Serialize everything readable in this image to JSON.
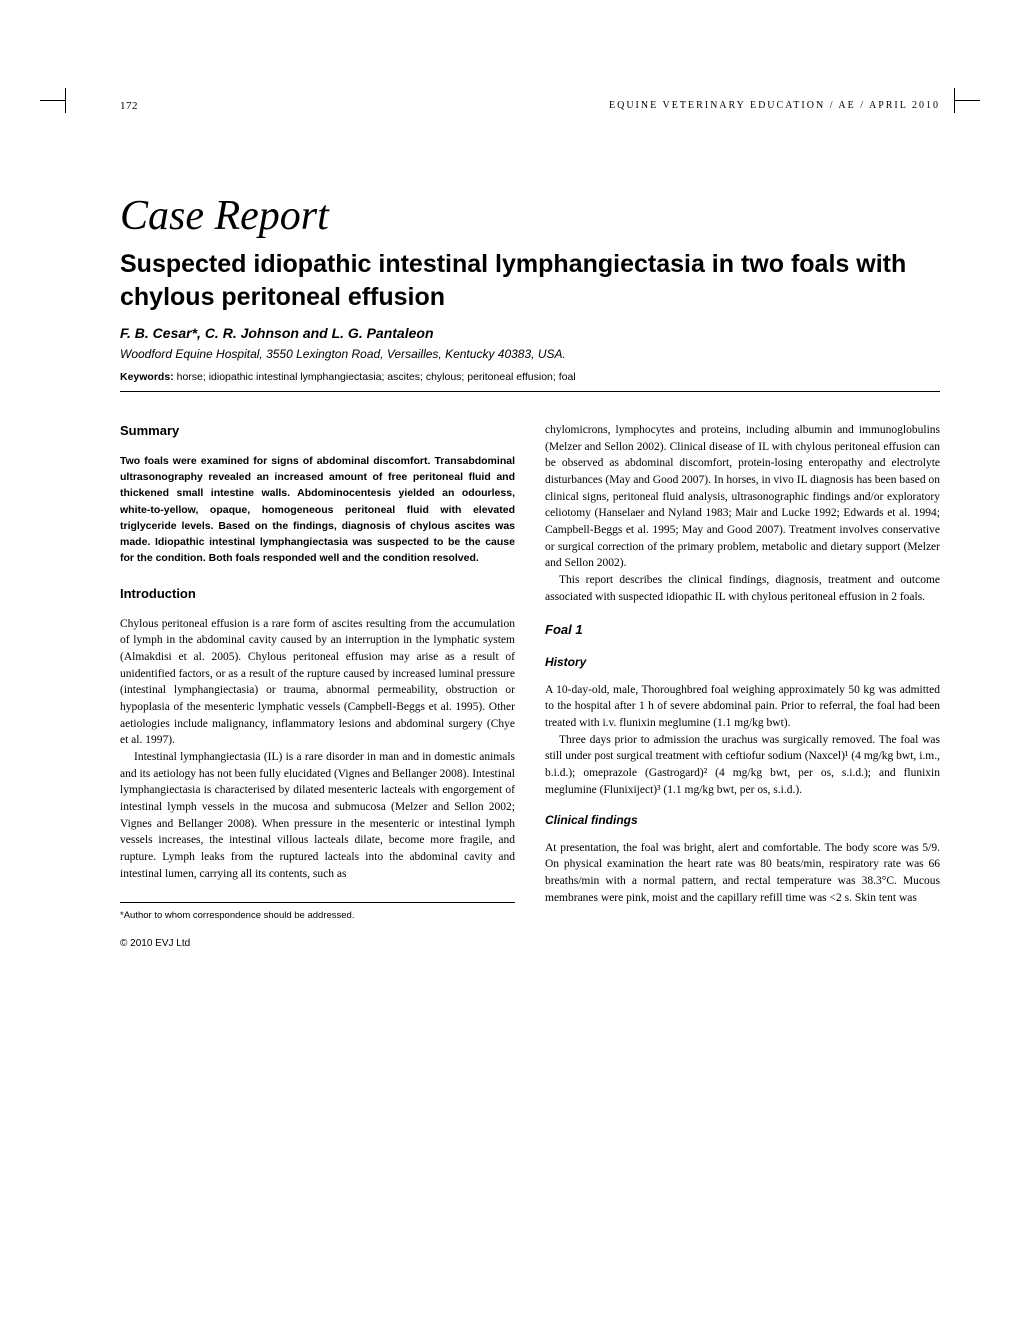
{
  "header": {
    "page_number": "172",
    "journal": "EQUINE VETERINARY EDUCATION / AE / APRIL 2010"
  },
  "article": {
    "type": "Case Report",
    "title": "Suspected idiopathic intestinal lymphangiectasia in two foals with chylous peritoneal effusion",
    "authors": "F. B. Cesar*, C. R. Johnson and L. G. Pantaleon",
    "affiliation": "Woodford Equine Hospital, 3550 Lexington Road, Versailles, Kentucky 40383, USA.",
    "keywords_label": "Keywords:",
    "keywords": " horse; idiopathic intestinal lymphangiectasia; ascites; chylous; peritoneal effusion; foal"
  },
  "summary": {
    "heading": "Summary",
    "text": "Two foals were examined for signs of abdominal discomfort. Transabdominal ultrasonography revealed an increased amount of free peritoneal fluid and thickened small intestine walls. Abdominocentesis yielded an odourless, white-to-yellow, opaque, homogeneous peritoneal fluid with elevated triglyceride levels. Based on the findings, diagnosis of chylous ascites was made. Idiopathic intestinal lymphangiectasia was suspected to be the cause for the condition. Both foals responded well and the condition resolved."
  },
  "introduction": {
    "heading": "Introduction",
    "p1": "Chylous peritoneal effusion is a rare form of ascites resulting from the accumulation of lymph in the abdominal cavity caused by an interruption in the lymphatic system (Almakdisi et al. 2005). Chylous peritoneal effusion may arise as a result of unidentified factors, or as a result of the rupture caused by increased luminal pressure (intestinal lymphangiectasia) or trauma, abnormal permeability, obstruction or hypoplasia of the mesenteric lymphatic vessels (Campbell-Beggs et al. 1995). Other aetiologies include malignancy, inflammatory lesions and abdominal surgery (Chye et al. 1997).",
    "p2": "Intestinal lymphangiectasia (IL) is a rare disorder in man and in domestic animals and its aetiology has not been fully elucidated (Vignes and Bellanger 2008). Intestinal lymphangiectasia is characterised by dilated mesenteric lacteals with engorgement of intestinal lymph vessels in the mucosa and submucosa (Melzer and Sellon 2002; Vignes and Bellanger 2008). When pressure in the mesenteric or intestinal lymph vessels increases, the intestinal villous lacteals dilate, become more fragile, and rupture. Lymph leaks from the ruptured lacteals into the abdominal cavity and intestinal lumen, carrying all its contents, such as"
  },
  "right_column": {
    "p1": "chylomicrons, lymphocytes and proteins, including albumin and immunoglobulins (Melzer and Sellon 2002). Clinical disease of IL with chylous peritoneal effusion can be observed as abdominal discomfort, protein-losing enteropathy and electrolyte disturbances (May and Good 2007). In horses, in vivo IL diagnosis has been based on clinical signs, peritoneal fluid analysis, ultrasonographic findings and/or exploratory celiotomy (Hanselaer and Nyland 1983; Mair and Lucke 1992; Edwards et al. 1994; Campbell-Beggs et al. 1995; May and Good 2007). Treatment involves conservative or surgical correction of the primary problem, metabolic and dietary support (Melzer and Sellon 2002).",
    "p2": "This report describes the clinical findings, diagnosis, treatment and outcome associated with suspected idiopathic IL with chylous peritoneal effusion in 2 foals."
  },
  "foal1": {
    "heading": "Foal 1",
    "history_heading": "History",
    "history_p1": "A 10-day-old, male, Thoroughbred foal weighing approximately 50 kg was admitted to the hospital after 1 h of severe abdominal pain. Prior to referral, the foal had been treated with i.v. flunixin meglumine (1.1 mg/kg bwt).",
    "history_p2": "Three days prior to admission the urachus was surgically removed. The foal was still under post surgical treatment with ceftiofur sodium (Naxcel)¹ (4 mg/kg bwt, i.m., b.i.d.); omeprazole (Gastrogard)² (4 mg/kg bwt, per os, s.i.d.); and flunixin meglumine (Flunixiject)³ (1.1 mg/kg bwt, per os, s.i.d.).",
    "clinical_heading": "Clinical findings",
    "clinical_p1": "At presentation, the foal was bright, alert and comfortable. The body score was 5/9. On physical examination the heart rate was 80 beats/min, respiratory rate was 66 breaths/min with a normal pattern, and rectal temperature was 38.3°C. Mucous membranes were pink, moist and the capillary refill time was <2 s. Skin tent was"
  },
  "footnote": "*Author to whom correspondence should be addressed.",
  "copyright": "© 2010 EVJ Ltd"
}
